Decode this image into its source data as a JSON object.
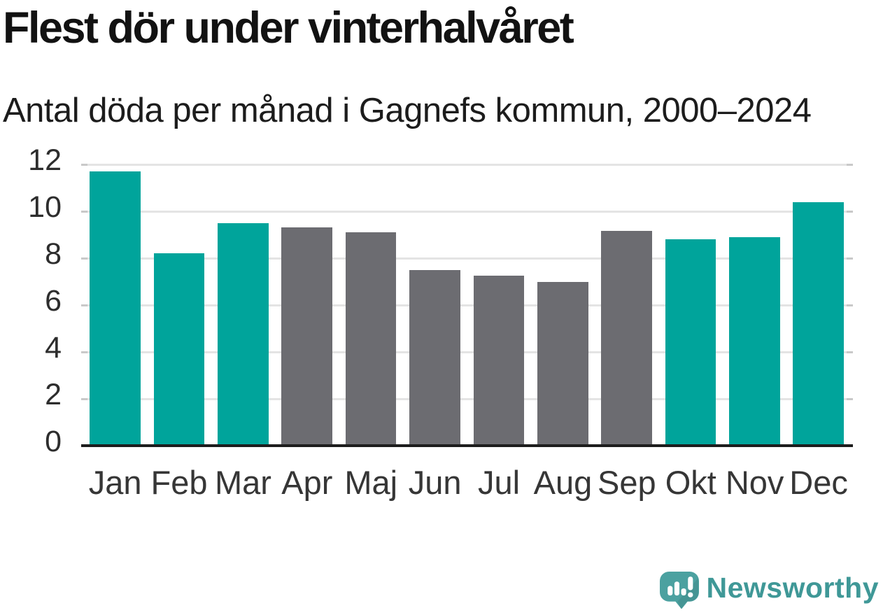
{
  "header": {
    "title": "Flest dör under vinterhalvåret",
    "subtitle": "Antal döda per månad i Gagnefs kommun, 2000–2024"
  },
  "chart_data": {
    "type": "bar",
    "title": "Flest dör under vinterhalvåret",
    "subtitle": "Antal döda per månad i Gagnefs kommun, 2000–2024",
    "categories": [
      "Jan",
      "Feb",
      "Mar",
      "Apr",
      "Maj",
      "Jun",
      "Jul",
      "Aug",
      "Sep",
      "Okt",
      "Nov",
      "Dec"
    ],
    "values": [
      11.7,
      8.2,
      9.5,
      9.3,
      9.1,
      7.5,
      7.25,
      7.0,
      9.15,
      8.8,
      8.9,
      10.4
    ],
    "bar_groups": [
      "winter",
      "winter",
      "winter",
      "summer",
      "summer",
      "summer",
      "summer",
      "summer",
      "summer",
      "winter",
      "winter",
      "winter"
    ],
    "group_colors": {
      "winter": "#00a49b",
      "summer": "#6c6c71"
    },
    "xlabel": "",
    "ylabel": "",
    "ylim": [
      0,
      12
    ],
    "yticks": [
      0,
      2,
      4,
      6,
      8,
      10,
      12
    ],
    "grid": "horizontal",
    "legend": "none"
  },
  "footer": {
    "brand": "Newsworthy",
    "brand_color": "#3f9897",
    "logo_icon": "newsworthy-bubble-chart-icon",
    "logo_bubble_color": "#4ba1a0"
  }
}
